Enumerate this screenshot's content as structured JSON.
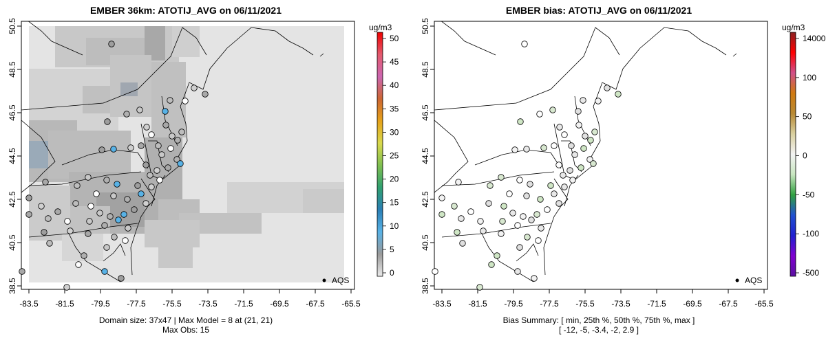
{
  "left_panel": {
    "title": "EMBER 36km: ATOTIJ_AVG on 06/11/2021",
    "x_ticks": [
      "-83.5",
      "-81.5",
      "-79.5",
      "-77.5",
      "-75.5",
      "-73.5",
      "-71.5",
      "-69.5",
      "-67.5",
      "-65.5"
    ],
    "y_ticks": [
      "50.5",
      "48.5",
      "46.5",
      "44.5",
      "42.5",
      "40.5",
      "38.5"
    ],
    "colorbar": {
      "unit": "ug/m3",
      "ticks": [
        "50",
        "45",
        "40",
        "35",
        "30",
        "25",
        "20",
        "15",
        "10",
        "5",
        "0"
      ],
      "stops": [
        "#f00000",
        "#e45a6e",
        "#cc66b0",
        "#cc6633",
        "#e6a31a",
        "#d9d94d",
        "#7fbf50",
        "#30a070",
        "#2a7fb5",
        "#58b2e6",
        "#9a9a9a",
        "#ebebeb"
      ]
    },
    "legend_label": "AQS",
    "footer_line1": "Domain size: 37x47 | Max Model = 8 at (21, 21)",
    "footer_line2": "Max Obs: 15"
  },
  "right_panel": {
    "title": "EMBER bias: ATOTIJ_AVG on 06/11/2021",
    "x_ticks": [
      "-83.5",
      "-81.5",
      "-79.5",
      "-77.5",
      "-75.5",
      "-73.5",
      "-71.5",
      "-69.5",
      "-67.5",
      "-65.5"
    ],
    "y_ticks": [
      "50.5",
      "48.5",
      "46.5",
      "44.5",
      "42.5",
      "40.5",
      "38.5"
    ],
    "colorbar": {
      "unit": "ug/m3",
      "ticks": [
        "14000",
        "100",
        "50",
        "0",
        "-50",
        "-100",
        "-500"
      ],
      "stops": [
        "#8b2020",
        "#ff0000",
        "#d0508a",
        "#d07a10",
        "#b88a35",
        "#d9d0a0",
        "#f3f3f3",
        "#c8e6c0",
        "#30a040",
        "#2050d0",
        "#2020d0",
        "#8000d0",
        "#5a10a0"
      ]
    },
    "legend_label": "AQS",
    "footer_line1": "Bias Summary: [ min, 25th %, 50th %, 75th %, max ]",
    "footer_line2": "[ -12,   -5,   -3.4,   -2,   2.9 ]"
  }
}
